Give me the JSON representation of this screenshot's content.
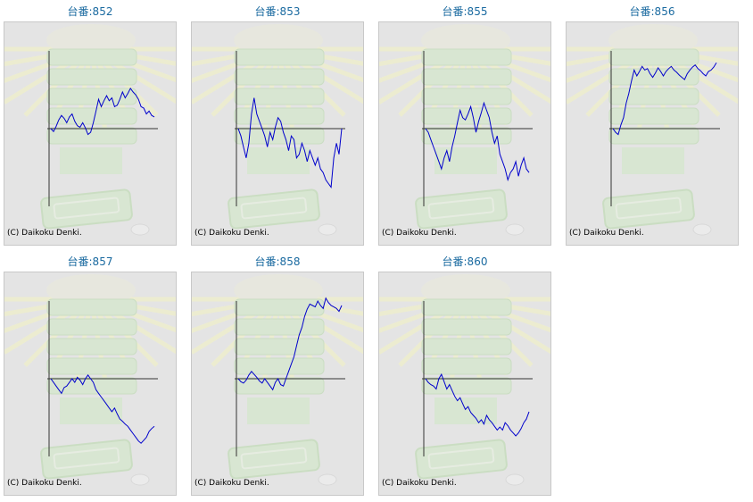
{
  "copyright": "(C) Daikoku Denki.",
  "colors": {
    "title": "#1a6aa0",
    "line": "#0000cc",
    "axis": "#333333",
    "panel_bg": "#e4e4e4"
  },
  "chart_data": [
    {
      "type": "line",
      "title": "台番:852",
      "y": [
        0,
        -4,
        3,
        12,
        18,
        14,
        8,
        16,
        20,
        10,
        4,
        2,
        8,
        1,
        -8,
        -5,
        8,
        24,
        40,
        30,
        38,
        45,
        38,
        42,
        30,
        32,
        40,
        50,
        42,
        48,
        55,
        50,
        46,
        40,
        30,
        28,
        20,
        24,
        18,
        16
      ]
    },
    {
      "type": "line",
      "title": "台番:853",
      "y": [
        0,
        -10,
        -25,
        -40,
        -20,
        20,
        42,
        20,
        10,
        0,
        -10,
        -25,
        -5,
        -15,
        2,
        15,
        10,
        -5,
        -15,
        -30,
        -10,
        -15,
        -40,
        -35,
        -20,
        -30,
        -45,
        -30,
        -40,
        -50,
        -40,
        -55,
        -60,
        -70,
        -75,
        -80,
        -40,
        -20,
        -35,
        0
      ]
    },
    {
      "type": "line",
      "title": "台番:855",
      "y": [
        0,
        -5,
        -15,
        -25,
        -35,
        -45,
        -55,
        -40,
        -30,
        -45,
        -25,
        -10,
        8,
        25,
        15,
        12,
        20,
        30,
        15,
        -5,
        10,
        22,
        35,
        25,
        15,
        -5,
        -20,
        -10,
        -35,
        -45,
        -55,
        -70,
        -60,
        -55,
        -45,
        -65,
        -50,
        -40,
        -55,
        -60
      ]
    },
    {
      "type": "line",
      "title": "台番:856",
      "y": [
        0,
        -5,
        -8,
        5,
        15,
        35,
        48,
        65,
        80,
        72,
        78,
        85,
        80,
        82,
        75,
        70,
        76,
        83,
        78,
        72,
        78,
        82,
        85,
        80,
        77,
        73,
        70,
        67,
        75,
        80,
        84,
        87,
        82,
        79,
        75,
        72,
        78,
        80,
        84,
        90
      ]
    },
    {
      "type": "line",
      "title": "台番:857",
      "y": [
        0,
        -5,
        -10,
        -15,
        -20,
        -12,
        -10,
        -5,
        0,
        -5,
        2,
        -2,
        -8,
        0,
        5,
        0,
        -5,
        -15,
        -20,
        -25,
        -30,
        -35,
        -40,
        -45,
        -40,
        -48,
        -55,
        -58,
        -62,
        -65,
        -70,
        -75,
        -80,
        -85,
        -88,
        -84,
        -80,
        -72,
        -68,
        -65
      ]
    },
    {
      "type": "line",
      "title": "台番:858",
      "y": [
        0,
        -4,
        -6,
        -2,
        5,
        10,
        6,
        2,
        -3,
        -6,
        0,
        -5,
        -10,
        -15,
        -5,
        0,
        -8,
        -10,
        0,
        10,
        20,
        30,
        45,
        60,
        70,
        85,
        95,
        102,
        100,
        98,
        106,
        100,
        96,
        110,
        104,
        100,
        98,
        96,
        92,
        100
      ]
    },
    {
      "type": "line",
      "title": "台番:860",
      "y": [
        0,
        -5,
        -8,
        -10,
        -14,
        0,
        6,
        -4,
        -14,
        -8,
        -16,
        -24,
        -30,
        -26,
        -34,
        -42,
        -38,
        -46,
        -50,
        -54,
        -60,
        -56,
        -62,
        -50,
        -56,
        -60,
        -65,
        -70,
        -66,
        -70,
        -60,
        -64,
        -70,
        -74,
        -78,
        -74,
        -68,
        -60,
        -55,
        -45
      ]
    }
  ]
}
